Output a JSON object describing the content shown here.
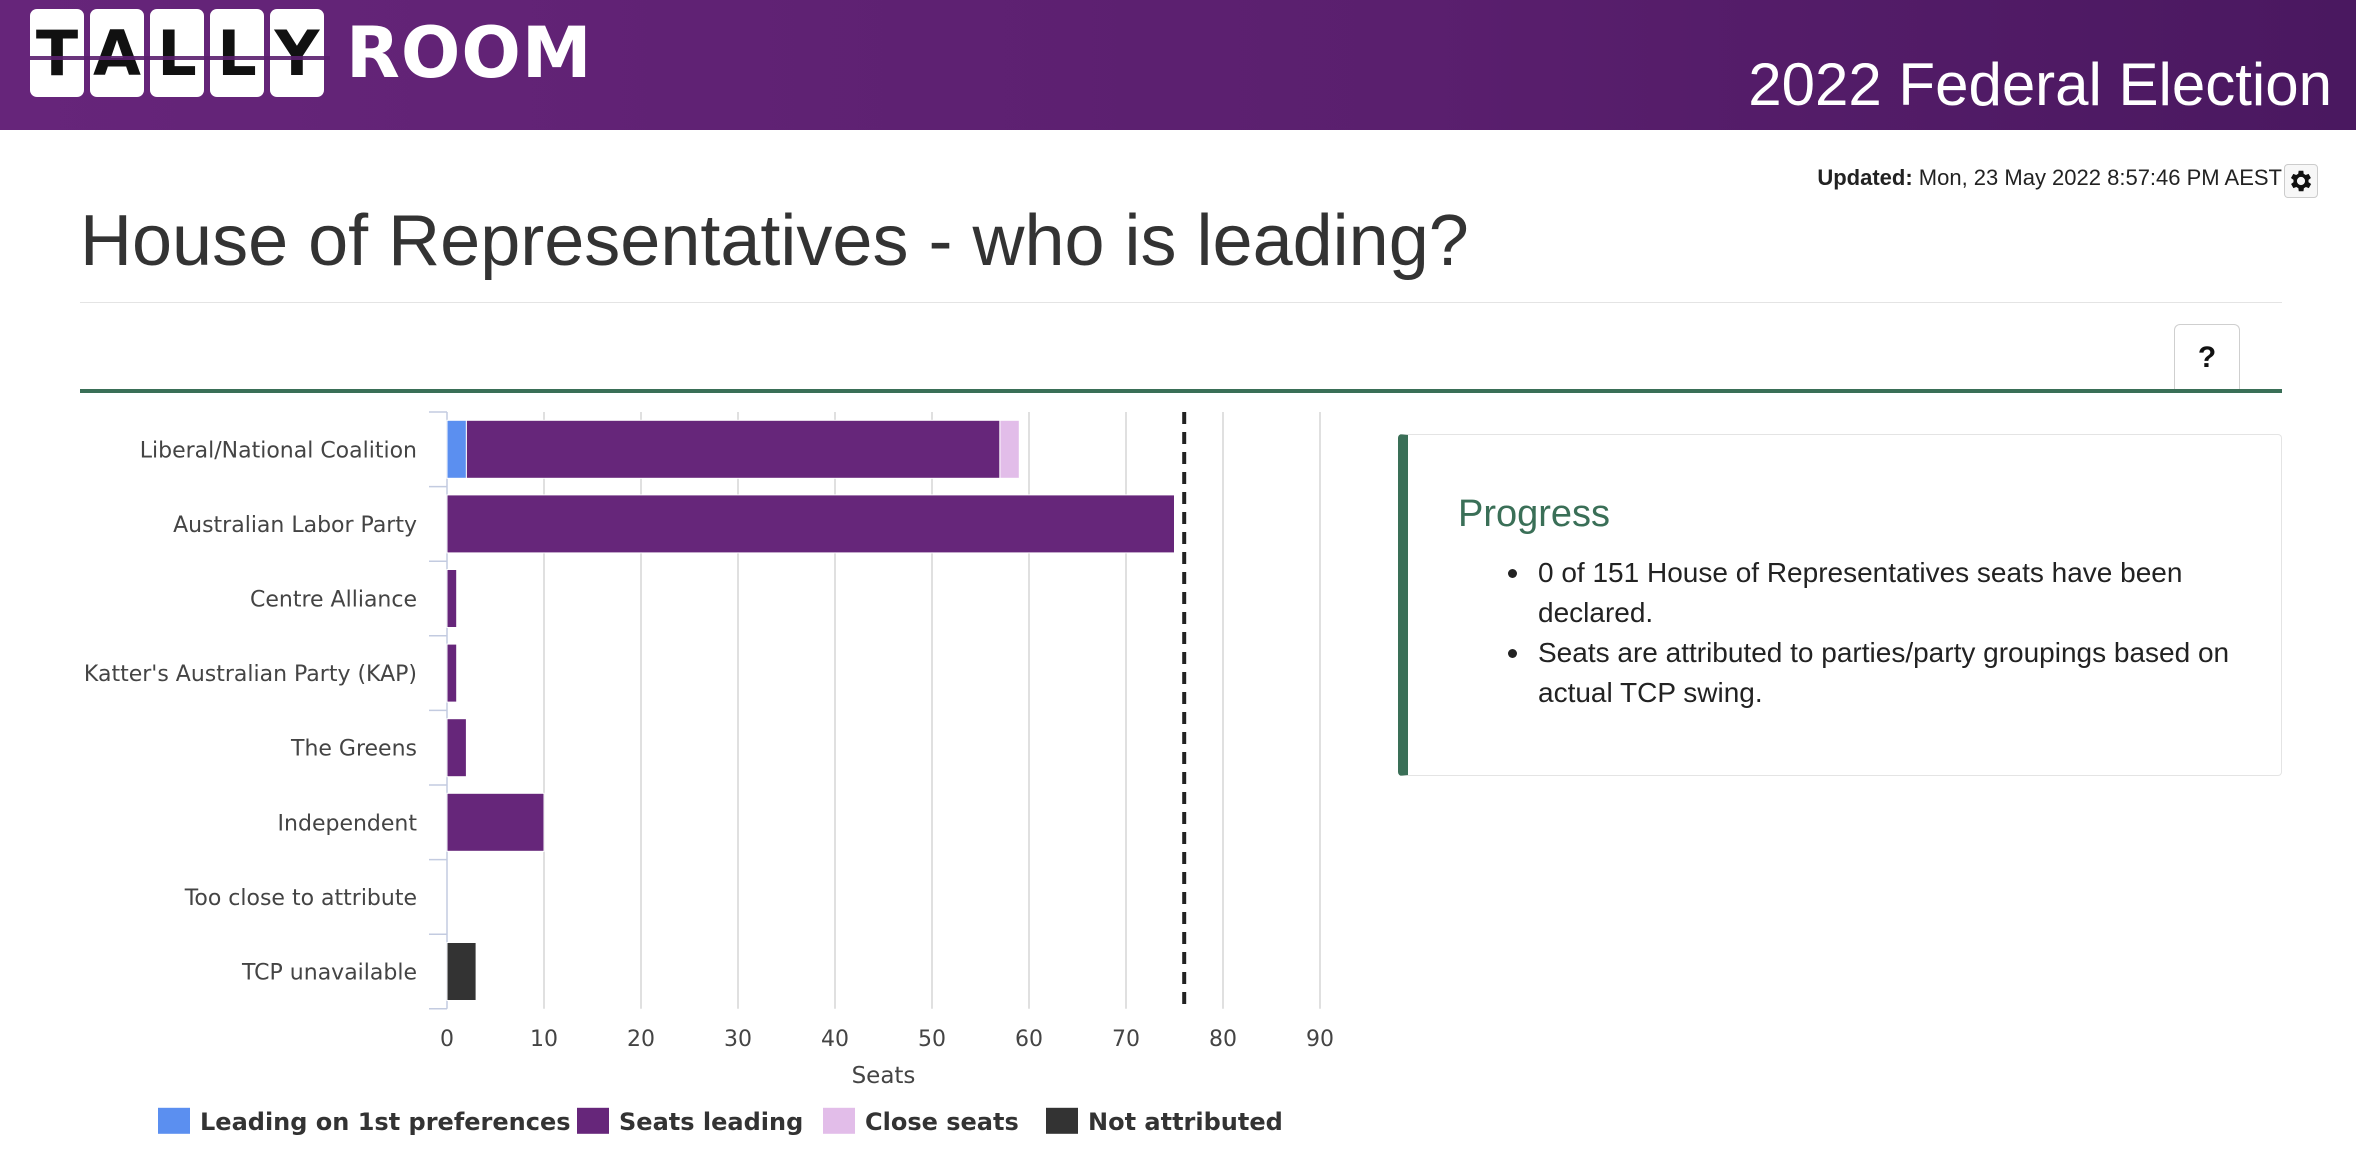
{
  "header": {
    "logo_letters": [
      "T",
      "A",
      "L",
      "L",
      "Y"
    ],
    "logo_word": "ROOM",
    "election_title": "2022 Federal Election"
  },
  "updated": {
    "label": "Updated:",
    "value": "Mon, 23 May 2022 8:57:46 PM AEST"
  },
  "page_title": "House of Representatives - who is leading?",
  "help_label": "?",
  "progress": {
    "title": "Progress",
    "items": [
      "0 of 151 House of Representatives seats have been declared.",
      "Seats are attributed to parties/party groupings based on actual TCP swing."
    ]
  },
  "colors": {
    "header_bg": "#5a1f6e",
    "accent_green": "#3a6f57",
    "first_pref": "#5b8ff0",
    "seats_leading": "#66267a",
    "close_seats": "#e2bde9",
    "not_attributed": "#333333"
  },
  "chart_data": {
    "type": "bar",
    "orientation": "horizontal",
    "stacked": true,
    "categories": [
      "Liberal/National Coalition",
      "Australian Labor Party",
      "Centre Alliance",
      "Katter's Australian Party (KAP)",
      "The Greens",
      "Independent",
      "Too close to attribute",
      "TCP unavailable"
    ],
    "series": [
      {
        "name": "Leading on 1st preferences",
        "color": "#5b8ff0",
        "values": [
          2,
          0,
          0,
          0,
          0,
          0,
          0,
          0
        ]
      },
      {
        "name": "Seats leading",
        "color": "#66267a",
        "values": [
          55,
          75,
          1,
          1,
          2,
          10,
          0,
          0
        ]
      },
      {
        "name": "Close seats",
        "color": "#e2bde9",
        "values": [
          2,
          0,
          0,
          0,
          0,
          0,
          0,
          0
        ]
      },
      {
        "name": "Not attributed",
        "color": "#333333",
        "values": [
          0,
          0,
          0,
          0,
          0,
          0,
          0,
          3
        ]
      }
    ],
    "xlabel": "Seats",
    "ylabel": "",
    "xlim": [
      0,
      90
    ],
    "xticks": [
      0,
      10,
      20,
      30,
      40,
      50,
      60,
      70,
      80,
      90
    ],
    "majority_line": 76,
    "grid": true,
    "legend_position": "bottom"
  }
}
